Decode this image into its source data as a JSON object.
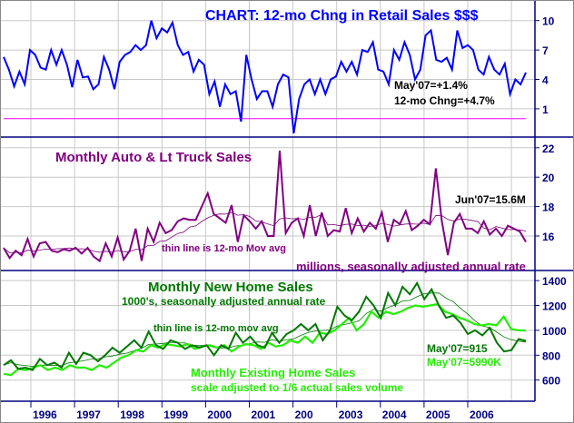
{
  "chart_data": [
    {
      "type": "line",
      "title": "CHART: 12-mo Chng in Retail Sales $$$",
      "x_range": [
        "1995-07",
        "2007-05"
      ],
      "ylim": [
        -2,
        11
      ],
      "yticks": [
        "10",
        "7",
        "4",
        "1"
      ],
      "reference_line": 0,
      "annotations": [
        "May'07=+1.4%",
        "12-mo Chng=+4.7%"
      ],
      "colors": {
        "series": "#0000ff",
        "reference": "#ff00ff",
        "title": "#0000ff"
      },
      "series": [
        {
          "values": [
            6.3,
            5,
            3.3,
            4.8,
            3.5,
            7,
            6.5,
            5.2,
            5,
            7,
            5.5,
            7,
            5.5,
            3.2,
            6,
            4.2,
            4.3,
            3,
            3.5,
            6.3,
            5,
            3,
            5.8,
            6.5,
            6.8,
            7.5,
            7,
            7.5,
            10,
            8.2,
            9.2,
            8.8,
            9.8,
            7.5,
            6.5,
            6.8,
            4.8,
            6,
            5.5,
            2.5,
            3.8,
            1.2,
            3.5,
            2.5,
            2.8,
            -0.3,
            6.5,
            4,
            2,
            2.8,
            2.8,
            1.2,
            3.5,
            4.5,
            4.2,
            -1.5,
            2,
            3.5,
            4,
            2.5,
            4,
            2.5,
            4,
            4.3,
            5.8,
            4.8,
            5.8,
            4.5,
            7,
            6.8,
            7.8,
            5,
            4.8,
            3.5,
            7,
            6,
            7.8,
            6.5,
            4,
            5,
            8.5,
            9,
            6,
            5.8,
            6.2,
            5,
            9,
            7.2,
            7.5,
            7,
            5,
            4.5,
            6.3,
            5,
            4.5,
            5.6,
            2.5,
            4,
            3.5,
            4.7
          ]
        }
      ]
    },
    {
      "type": "line",
      "title": "Monthly Auto & Lt Truck Sales",
      "x_range": [
        "1995-07",
        "2007-06"
      ],
      "ylim": [
        14,
        22.5
      ],
      "yticks": [
        "22",
        "20",
        "18",
        "16"
      ],
      "annotations": [
        "Jun'07=15.6M",
        "thin line is 12-mo Mov avg",
        "millions, seasonally adjusted annual rate"
      ],
      "colors": {
        "series": "#800080"
      },
      "series": [
        {
          "values": [
            15.2,
            14.5,
            15,
            14.7,
            15.8,
            14.6,
            15.5,
            15.6,
            15,
            14.9,
            15.1,
            15,
            15.2,
            14.8,
            15.2,
            14.6,
            14.3,
            15.5,
            14.6,
            15.9,
            14.4,
            15,
            16.5,
            14.3,
            16.5,
            15.6,
            16.9,
            16.2,
            16.4,
            17,
            17.2,
            17.1,
            17.1,
            18,
            18.9,
            17.5,
            17.2,
            16.9,
            18.1,
            15.6,
            17.4,
            17,
            16.5,
            17,
            16,
            16,
            21.8,
            16.2,
            16.9,
            17.2,
            16,
            18.1,
            16,
            17.6,
            16,
            16.4,
            16.3,
            17.9,
            16.2,
            17.2,
            16.3,
            16.9,
            16.5,
            17.6,
            15.6,
            17.1,
            16.8,
            17.7,
            16.4,
            16.7,
            17.1,
            16.8,
            20.6,
            17,
            14.7,
            16.9,
            17.5,
            16.5,
            16.5,
            16.2,
            17,
            16.1,
            16.5,
            16,
            16.7,
            16.5,
            16.3,
            15.6
          ]
        }
      ]
    },
    {
      "type": "line",
      "title": "Monthly New Home Sales",
      "subtitle": "1000's, seasonally adjusted annual rate",
      "x_range": [
        "1995-07",
        "2007-05"
      ],
      "ylim": [
        450,
        1450
      ],
      "yticks": [
        "1400",
        "1200",
        "1000",
        "800",
        "600"
      ],
      "xticks": [
        "1996",
        "1997",
        "1998",
        "1999",
        "2000",
        "2001",
        "200",
        "2003",
        "2004",
        "2005",
        "2006"
      ],
      "annotations": [
        "thin line is 12-mo mov avg",
        "May'07=915",
        "May'07=5990K",
        "Monthly Existing Home Sales",
        "scale adjusted to 1/6 actual sales volume"
      ],
      "colors": {
        "new": "#007800",
        "existing": "#22ee00"
      },
      "series": [
        {
          "name": "Monthly New Home Sales",
          "values": [
            720,
            760,
            690,
            700,
            680,
            770,
            720,
            740,
            700,
            820,
            730,
            820,
            800,
            750,
            800,
            860,
            820,
            870,
            920,
            860,
            990,
            880,
            850,
            920,
            900,
            850,
            880,
            860,
            880,
            800,
            880,
            850,
            980,
            900,
            950,
            880,
            860,
            980,
            900,
            970,
            1000,
            1050,
            1000,
            1050,
            920,
            1000,
            1190,
            1120,
            1080,
            1150,
            1270,
            1200,
            1100,
            1300,
            1200,
            1350,
            1290,
            1380,
            1250,
            1330,
            1200,
            1100,
            1120,
            1060,
            970,
            1000,
            960,
            1020,
            900,
            830,
            840,
            930,
            915
          ]
        },
        {
          "name": "Monthly Existing Home Sales",
          "values": [
            650,
            640,
            690,
            680,
            700,
            720,
            680,
            700,
            680,
            720,
            700,
            700,
            680,
            720,
            700,
            740,
            780,
            800,
            840,
            830,
            880,
            860,
            890,
            880,
            870,
            890,
            850,
            870,
            880,
            860,
            880,
            830,
            870,
            890,
            880,
            850,
            900,
            870,
            880,
            920,
            900,
            950,
            900,
            980,
            970,
            1000,
            1050,
            1100,
            1000,
            1050,
            1150,
            1100,
            1150,
            1130,
            1150,
            1180,
            1200,
            1190,
            1200,
            1210,
            1150,
            1130,
            1100,
            1080,
            1050,
            1040,
            1050,
            1040,
            1110,
            1010,
            1000,
            998
          ]
        }
      ]
    }
  ]
}
